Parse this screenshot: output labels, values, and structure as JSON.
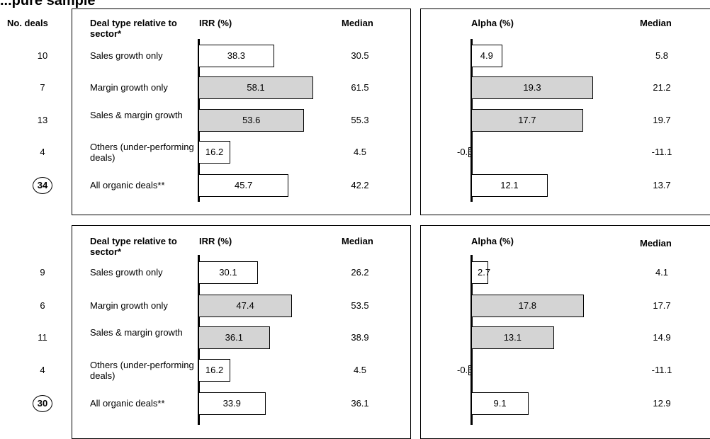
{
  "page_title": "...pure sample",
  "no_deals_label": "No. deals",
  "headers": {
    "deal_type": "Deal type relative to sector*",
    "irr": "IRR (%)",
    "alpha": "Alpha (%)",
    "median": "Median"
  },
  "chart_data": [
    {
      "type": "bar",
      "categories": [
        "Sales growth only",
        "Margin growth only",
        "Sales & margin growth",
        "Others (under-performing deals)",
        "All organic deals**"
      ],
      "deal_counts": [
        "10",
        "7",
        "13",
        "4",
        "34"
      ],
      "irr": {
        "values": [
          38.3,
          58.1,
          53.6,
          16.2,
          45.7
        ],
        "labels": [
          "38.3",
          "58.1",
          "53.6",
          "16.2",
          "45.7"
        ],
        "median": [
          "30.5",
          "61.5",
          "55.3",
          "4.5",
          "42.2"
        ]
      },
      "alpha": {
        "values": [
          4.9,
          19.3,
          17.7,
          -0.6,
          12.1
        ],
        "labels": [
          "4.9",
          "19.3",
          "17.7",
          "-0.6",
          "12.1"
        ],
        "median": [
          "5.8",
          "21.2",
          "19.7",
          "-11.1",
          "13.7"
        ]
      },
      "shaded": [
        false,
        true,
        true,
        false,
        false
      ]
    },
    {
      "type": "bar",
      "categories": [
        "Sales growth only",
        "Margin growth only",
        "Sales & margin growth",
        "Others (under-performing deals)",
        "All organic deals**"
      ],
      "deal_counts": [
        "9",
        "6",
        "11",
        "4",
        "30"
      ],
      "irr": {
        "values": [
          30.1,
          47.4,
          36.1,
          16.2,
          33.9
        ],
        "labels": [
          "30.1",
          "47.4",
          "36.1",
          "16.2",
          "33.9"
        ],
        "median": [
          "26.2",
          "53.5",
          "38.9",
          "4.5",
          "36.1"
        ]
      },
      "alpha": {
        "values": [
          2.7,
          17.8,
          13.1,
          -0.6,
          9.1
        ],
        "labels": [
          "2.7",
          "17.8",
          "13.1",
          "-0.6",
          "9.1"
        ],
        "median": [
          "4.1",
          "17.7",
          "14.9",
          "-11.1",
          "12.9"
        ]
      },
      "shaded": [
        false,
        true,
        true,
        false,
        false
      ]
    }
  ]
}
